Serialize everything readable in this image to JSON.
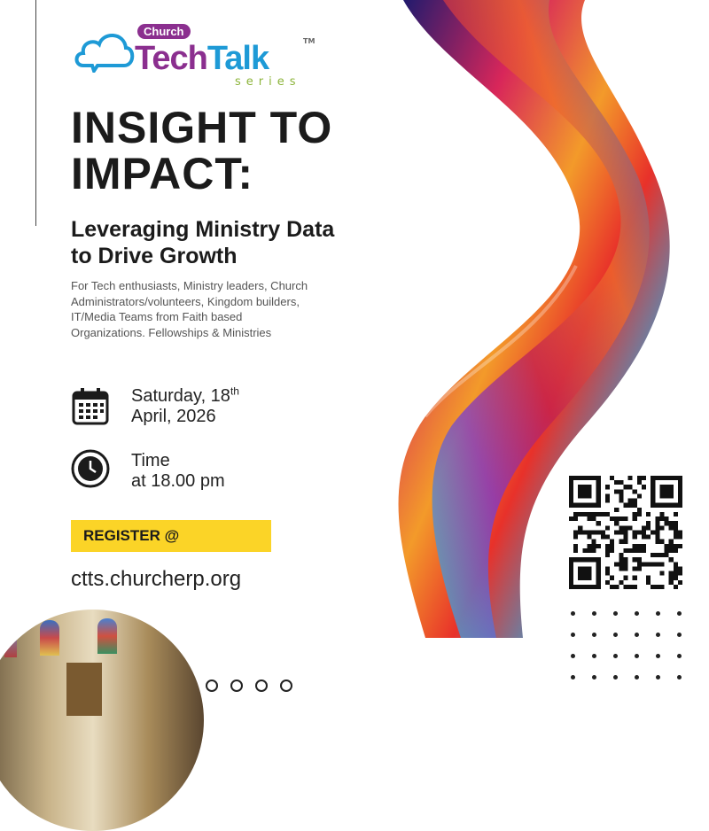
{
  "logo": {
    "badge": "Church",
    "word1": "Tech",
    "word2": "Talk",
    "tm": "TM",
    "series": "series",
    "colors": {
      "purple": "#8b2f8f",
      "blue": "#1e9ad6",
      "green": "#8cb43a"
    }
  },
  "title": {
    "line1": "INSIGHT TO",
    "line2": "IMPACT:"
  },
  "subtitle": {
    "line1": "Leveraging Ministry Data",
    "line2": "to Drive Growth"
  },
  "audience": [
    "For Tech enthusiasts, Ministry  leaders, Church",
    "Administrators/volunteers, Kingdom builders,",
    "IT/Media Teams from Faith based",
    "Organizations. Fellowships & Ministries"
  ],
  "date": {
    "icon": "calendar-icon",
    "line1": "Saturday, 18",
    "sup": "th",
    "line2": "April, 2026"
  },
  "time": {
    "icon": "clock-icon",
    "line1": "Time",
    "line2": "at 18.00 pm"
  },
  "register": {
    "label": "REGISTER @",
    "color": "#fbd427"
  },
  "url": "ctts.churcherp.org"
}
